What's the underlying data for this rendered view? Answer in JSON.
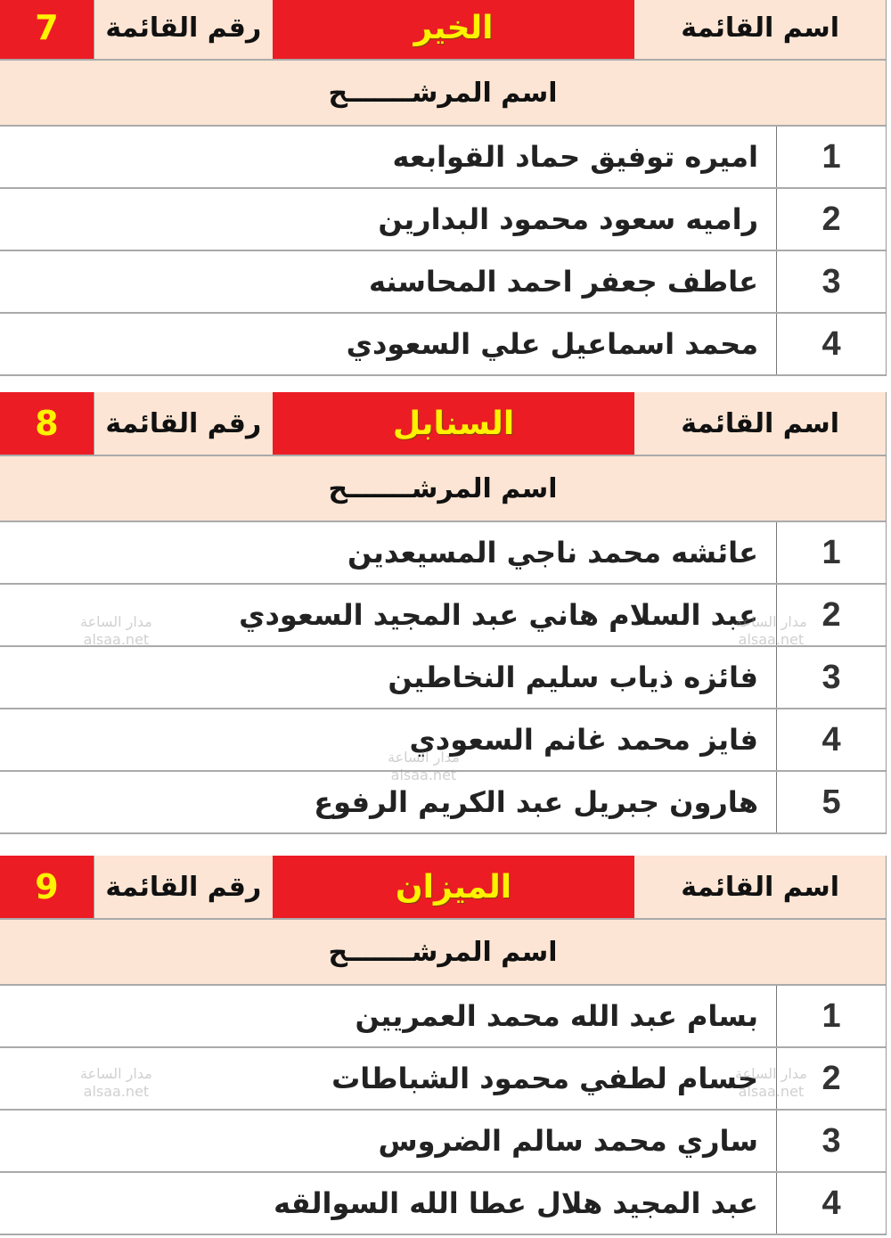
{
  "labels": {
    "list_name_label": "اسم القائمة",
    "list_number_label": "رقم القائمة",
    "candidate_name_header": "اسم المرشـــــــح"
  },
  "colors": {
    "accent_red": "#ec1c24",
    "highlight_yellow": "#fff200",
    "beige": "#fce5d4"
  },
  "lists": [
    {
      "name": "الخير",
      "number": "7",
      "candidates": [
        {
          "no": "1",
          "name": "اميره توفيق حماد القوابعه"
        },
        {
          "no": "2",
          "name": "راميه سعود محمود البدارين"
        },
        {
          "no": "3",
          "name": "عاطف جعفر احمد المحاسنه"
        },
        {
          "no": "4",
          "name": "محمد اسماعيل علي السعودي"
        }
      ]
    },
    {
      "name": "السنابل",
      "number": "8",
      "candidates": [
        {
          "no": "1",
          "name": "عائشه محمد ناجي المسيعدين"
        },
        {
          "no": "2",
          "name": "عبد السلام هاني عبد المجيد السعودي"
        },
        {
          "no": "3",
          "name": "فائزه ذياب سليم النخاطين"
        },
        {
          "no": "4",
          "name": "فايز محمد غانم السعودي"
        },
        {
          "no": "5",
          "name": "هارون جبريل عبد الكريم الرفوع"
        }
      ]
    },
    {
      "name": "الميزان",
      "number": "9",
      "candidates": [
        {
          "no": "1",
          "name": "بسام عبد الله محمد العمريين"
        },
        {
          "no": "2",
          "name": "حسام لطفي محمود الشباطات"
        },
        {
          "no": "3",
          "name": "ساري محمد سالم الضروس"
        },
        {
          "no": "4",
          "name": "عبد المجيد هلال عطا الله السوالقه"
        }
      ]
    }
  ],
  "watermark": {
    "line1": "مدار الساعة",
    "line2": "alsaa.net"
  }
}
